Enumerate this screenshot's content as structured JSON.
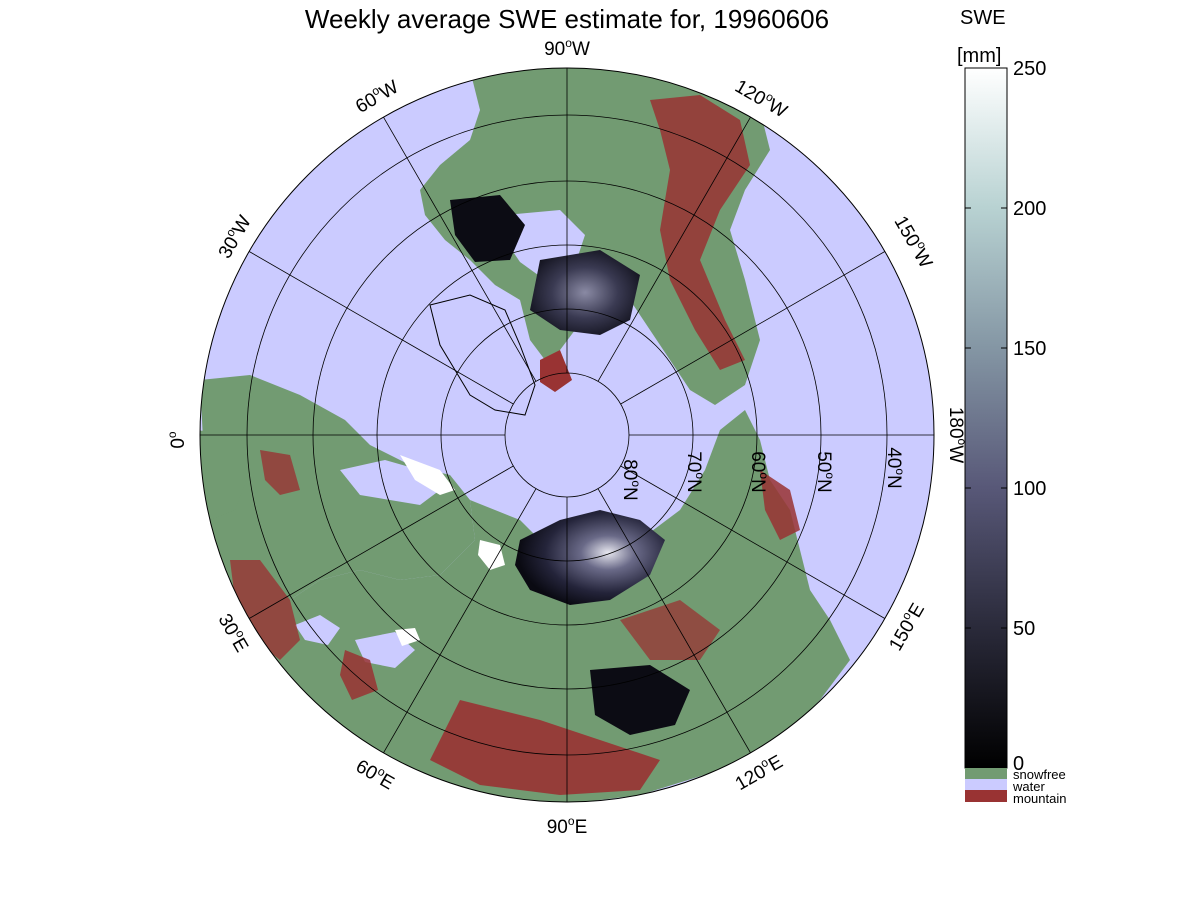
{
  "title": "Weekly average SWE estimate for, 19960606",
  "colorbar": {
    "label_line1": "SWE",
    "label_line2": "[mm]",
    "ticks": [
      "0",
      "50",
      "100",
      "150",
      "200",
      "250"
    ],
    "tick_values": [
      0,
      50,
      100,
      150,
      200,
      250
    ],
    "range": [
      0,
      250
    ],
    "gradient_colors": [
      "#000000",
      "#2a2a3a",
      "#585878",
      "#8496a4",
      "#b8d2d2",
      "#ffffff"
    ],
    "categories": [
      {
        "name": "snowfree",
        "color": "#729b72"
      },
      {
        "name": "water",
        "color": "#cbcbff"
      },
      {
        "name": "mountain",
        "color": "#993333"
      }
    ]
  },
  "map": {
    "projection": "north-polar-stereographic",
    "colors": {
      "water": "#cbcbff",
      "land": "#729b72",
      "mountain": "#993333",
      "snow_shallow": "#101018",
      "snow_mid": "#5a5a78",
      "grid": "#000000",
      "coast": "#000000"
    },
    "longitude_labels": [
      {
        "deg": "90",
        "hemi": "W"
      },
      {
        "deg": "120",
        "hemi": "W"
      },
      {
        "deg": "150",
        "hemi": "W"
      },
      {
        "deg": "180",
        "hemi": "W"
      },
      {
        "deg": "150",
        "hemi": "E"
      },
      {
        "deg": "120",
        "hemi": "E"
      },
      {
        "deg": "90",
        "hemi": "E"
      },
      {
        "deg": "60",
        "hemi": "E"
      },
      {
        "deg": "30",
        "hemi": "E"
      },
      {
        "deg": "0",
        "hemi": ""
      },
      {
        "deg": "30",
        "hemi": "W"
      },
      {
        "deg": "60",
        "hemi": "W"
      }
    ],
    "latitude_labels": [
      {
        "deg": "80",
        "hemi": "N"
      },
      {
        "deg": "70",
        "hemi": "N"
      },
      {
        "deg": "60",
        "hemi": "N"
      },
      {
        "deg": "50",
        "hemi": "N"
      },
      {
        "deg": "40",
        "hemi": "N"
      }
    ]
  }
}
